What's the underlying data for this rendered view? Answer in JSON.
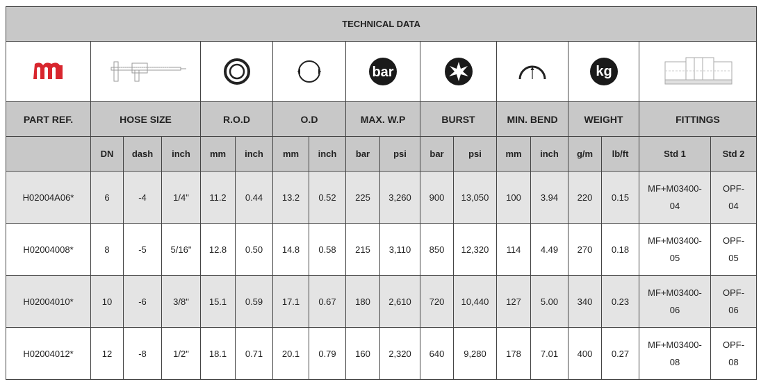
{
  "title": "TECHNICAL DATA",
  "icons": [
    "brand-logo-icon",
    "caliper-icon",
    "outer-diameter-ring-icon",
    "diameter-circle-icon",
    "bar-pressure-icon",
    "burst-icon",
    "bend-radius-icon",
    "kg-weight-icon",
    "fitting-drawing-icon"
  ],
  "bar_icon_text": "bar",
  "kg_icon_text": "kg",
  "headers": {
    "part_ref": "PART REF.",
    "hose_size": "HOSE SIZE",
    "rod": "R.O.D",
    "od": "O.D",
    "max_wp": "MAX. W.P",
    "burst": "BURST",
    "min_bend": "MIN. BEND",
    "weight": "WEIGHT",
    "fittings": "FITTINGS"
  },
  "subheaders": [
    "DN",
    "dash",
    "inch",
    "mm",
    "inch",
    "mm",
    "inch",
    "bar",
    "psi",
    "bar",
    "psi",
    "mm",
    "inch",
    "g/m",
    "lb/ft",
    "Std 1",
    "Std 2"
  ],
  "rows": [
    {
      "part": "H02004A06*",
      "dn": "6",
      "dash": "-4",
      "inch": "1/4\"",
      "rod_mm": "11.2",
      "rod_inch": "0.44",
      "od_mm": "13.2",
      "od_inch": "0.52",
      "wp_bar": "225",
      "wp_psi": "3,260",
      "burst_bar": "900",
      "burst_psi": "13,050",
      "bend_mm": "100",
      "bend_inch": "3.94",
      "g_m": "220",
      "lb_ft": "0.15",
      "std1_a": "MF+M03400-",
      "std1_b": "04",
      "std2_a": "OPF-",
      "std2_b": "04"
    },
    {
      "part": "H02004008*",
      "dn": "8",
      "dash": "-5",
      "inch": "5/16\"",
      "rod_mm": "12.8",
      "rod_inch": "0.50",
      "od_mm": "14.8",
      "od_inch": "0.58",
      "wp_bar": "215",
      "wp_psi": "3,110",
      "burst_bar": "850",
      "burst_psi": "12,320",
      "bend_mm": "114",
      "bend_inch": "4.49",
      "g_m": "270",
      "lb_ft": "0.18",
      "std1_a": "MF+M03400-",
      "std1_b": "05",
      "std2_a": "OPF-",
      "std2_b": "05"
    },
    {
      "part": "H02004010*",
      "dn": "10",
      "dash": "-6",
      "inch": "3/8\"",
      "rod_mm": "15.1",
      "rod_inch": "0.59",
      "od_mm": "17.1",
      "od_inch": "0.67",
      "wp_bar": "180",
      "wp_psi": "2,610",
      "burst_bar": "720",
      "burst_psi": "10,440",
      "bend_mm": "127",
      "bend_inch": "5.00",
      "g_m": "340",
      "lb_ft": "0.23",
      "std1_a": "MF+M03400-",
      "std1_b": "06",
      "std2_a": "OPF-",
      "std2_b": "06"
    },
    {
      "part": "H02004012*",
      "dn": "12",
      "dash": "-8",
      "inch": "1/2\"",
      "rod_mm": "18.1",
      "rod_inch": "0.71",
      "od_mm": "20.1",
      "od_inch": "0.79",
      "wp_bar": "160",
      "wp_psi": "2,320",
      "burst_bar": "640",
      "burst_psi": "9,280",
      "bend_mm": "178",
      "bend_inch": "7.01",
      "g_m": "400",
      "lb_ft": "0.27",
      "std1_a": "MF+M03400-",
      "std1_b": "08",
      "std2_a": "OPF-",
      "std2_b": "08"
    }
  ],
  "colors": {
    "header_bg": "#c8c8c8",
    "shade_row": "#e4e4e4",
    "logo_red": "#d8262e",
    "border": "#444444"
  }
}
